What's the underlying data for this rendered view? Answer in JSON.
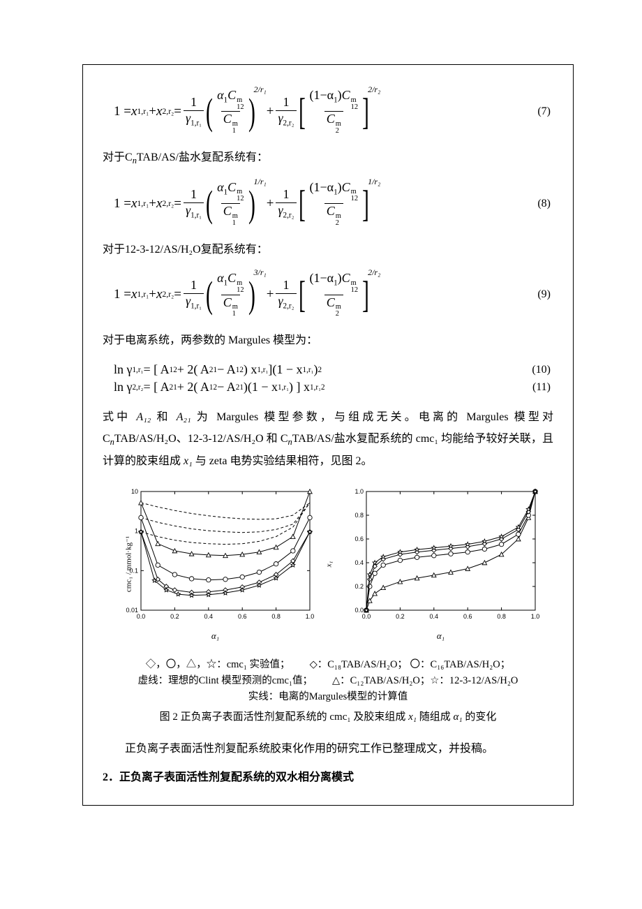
{
  "eq7": {
    "lhs_1": "1 = ",
    "x1": "x",
    "x1_sub": "1,r₁",
    "plus": " + ",
    "x2": "x",
    "x2_sub": "2,r₂",
    "eq": " = ",
    "f1_num": "1",
    "f1_den_base": "γ",
    "f1_den_sub": "1,r₁",
    "p1_num_a": "α",
    "p1_num_a_sub": "1",
    "p1_num_b": "C",
    "p1_num_b_ss_top": "m",
    "p1_num_b_ss_bot": "12",
    "p1_den_b": "C",
    "p1_den_ss_top": "m",
    "p1_den_ss_bot": "1",
    "exp1": "2/r₁",
    "f2_num": "1",
    "f2_den_base": "γ",
    "f2_den_sub": "2,r₂",
    "p2_num_a": "(1−α",
    "p2_num_a_sub": "1",
    "p2_num_a2": ")",
    "p2_num_b": "C",
    "p2_num_b_ss_top": "m",
    "p2_num_b_ss_bot": "12",
    "p2_den_b": "C",
    "p2_den_ss_top": "m",
    "p2_den_ss_bot": "2",
    "exp2": "2/r₂",
    "num": "(7)"
  },
  "para1_a": "对于C",
  "para1_b": "TAB/AS/盐水复配系统有：",
  "n_italic": "n",
  "eq8": {
    "exp1": "1/r₁",
    "exp2": "1/r₂",
    "num": "(8)"
  },
  "para2": "对于12-3-12/AS/H₂O复配系统有：",
  "eq9": {
    "exp1": "3/r₁",
    "exp2": "2/r₂",
    "num": "(9)"
  },
  "para3": "对于电离系统，两参数的 Margules 模型为：",
  "eq10": {
    "lhs": "ln γ",
    "lhs_sub": "1,r₁",
    "body_a": " = [ A",
    "a12": "12",
    "body_b": " + 2( A",
    "a21": "21",
    "body_c": " − A",
    "body_d": " ) x",
    "x_sub": "1,r₁",
    "body_e": " ](1 − x",
    "body_f": ")",
    "sq": "2",
    "num": "(10)"
  },
  "eq11": {
    "lhs": "ln γ",
    "lhs_sub": "2,r₂",
    "body_a": " = [ A",
    "a21": "21",
    "body_b": " + 2( A",
    "a12": "12",
    "body_c": " − A",
    "body_d": " )(1 − x",
    "x_sub": "1,r₁",
    "body_e": ") ] x",
    "body_f": "",
    "sq": "2",
    "num": "(11)"
  },
  "para4_a": "式中 ",
  "para4_b": " 和 ",
  "para4_c": " 为 Margules 模型参数，与组成无关。电离的 Margules 模型对 C",
  "para4_d": "TAB/AS/H₂O、12-3-12/AS/H₂O 和 C",
  "para4_e": "TAB/AS/盐水复配系统的 cmc₁ 均能给予较好关联，且计算的胶束组成 ",
  "para4_f": " 与 zeta 电势实验结果相符，见图 2。",
  "A12": "A₁₂",
  "A21": "A₂₁",
  "x1_text": "x₁",
  "chart_left": {
    "ylabel": "cmc₁ / mmol·kg⁻¹",
    "xlabel": "α₁",
    "xticks": [
      "0.0",
      "0.2",
      "0.4",
      "0.6",
      "0.8",
      "1.0"
    ],
    "yticks": [
      "0.01",
      "0.1",
      "1",
      "10"
    ],
    "colors": {
      "axis": "#000000",
      "bg": "#ffffff"
    },
    "series": {
      "dash1": [
        [
          0,
          0.905
        ],
        [
          0.1,
          0.87
        ],
        [
          0.2,
          0.84
        ],
        [
          0.3,
          0.815
        ],
        [
          0.4,
          0.795
        ],
        [
          0.5,
          0.78
        ],
        [
          0.6,
          0.77
        ],
        [
          0.7,
          0.765
        ],
        [
          0.8,
          0.77
        ],
        [
          0.9,
          0.8
        ],
        [
          1.0,
          0.905
        ]
      ],
      "dash2": [
        [
          0,
          0.78
        ],
        [
          0.1,
          0.74
        ],
        [
          0.2,
          0.71
        ],
        [
          0.3,
          0.685
        ],
        [
          0.4,
          0.67
        ],
        [
          0.5,
          0.66
        ],
        [
          0.6,
          0.655
        ],
        [
          0.7,
          0.66
        ],
        [
          0.8,
          0.68
        ],
        [
          0.9,
          0.725
        ],
        [
          1.0,
          0.905
        ]
      ],
      "dash3": [
        [
          0,
          0.66
        ],
        [
          0.1,
          0.62
        ],
        [
          0.2,
          0.59
        ],
        [
          0.3,
          0.57
        ],
        [
          0.4,
          0.56
        ],
        [
          0.5,
          0.555
        ],
        [
          0.6,
          0.56
        ],
        [
          0.7,
          0.58
        ],
        [
          0.8,
          0.62
        ],
        [
          0.9,
          0.7
        ],
        [
          1.0,
          0.905
        ]
      ],
      "s_tri": [
        [
          0,
          0.905
        ],
        [
          0.1,
          0.56
        ],
        [
          0.2,
          0.5
        ],
        [
          0.3,
          0.475
        ],
        [
          0.4,
          0.465
        ],
        [
          0.5,
          0.46
        ],
        [
          0.6,
          0.47
        ],
        [
          0.7,
          0.49
        ],
        [
          0.8,
          0.53
        ],
        [
          0.9,
          0.62
        ],
        [
          1.0,
          1.0
        ]
      ],
      "s_circ": [
        [
          0,
          0.78
        ],
        [
          0.1,
          0.38
        ],
        [
          0.2,
          0.3
        ],
        [
          0.3,
          0.265
        ],
        [
          0.4,
          0.255
        ],
        [
          0.5,
          0.26
        ],
        [
          0.6,
          0.28
        ],
        [
          0.7,
          0.32
        ],
        [
          0.8,
          0.39
        ],
        [
          0.9,
          0.5
        ],
        [
          1.0,
          0.78
        ]
      ],
      "s_dia": [
        [
          0,
          0.66
        ],
        [
          0.1,
          0.26
        ],
        [
          0.15,
          0.2
        ],
        [
          0.2,
          0.17
        ],
        [
          0.3,
          0.15
        ],
        [
          0.4,
          0.155
        ],
        [
          0.5,
          0.17
        ],
        [
          0.6,
          0.195
        ],
        [
          0.7,
          0.235
        ],
        [
          0.8,
          0.3
        ],
        [
          0.9,
          0.415
        ],
        [
          1.0,
          0.66
        ]
      ],
      "s_star": [
        [
          0,
          0.66
        ],
        [
          0.08,
          0.25
        ],
        [
          0.15,
          0.17
        ],
        [
          0.22,
          0.135
        ],
        [
          0.3,
          0.125
        ],
        [
          0.4,
          0.13
        ],
        [
          0.5,
          0.145
        ],
        [
          0.6,
          0.17
        ],
        [
          0.7,
          0.21
        ],
        [
          0.8,
          0.27
        ],
        [
          0.9,
          0.38
        ],
        [
          1.0,
          0.66
        ]
      ]
    }
  },
  "chart_right": {
    "ylabel": "x₁",
    "xlabel": "α₁",
    "xticks": [
      "0.0",
      "0.2",
      "0.4",
      "0.6",
      "0.8",
      "1.0"
    ],
    "yticks": [
      "0.0",
      "0.2",
      "0.4",
      "0.6",
      "0.8",
      "1.0"
    ],
    "colors": {
      "axis": "#000000",
      "bg": "#ffffff"
    },
    "series": {
      "s_tri": [
        [
          0,
          0
        ],
        [
          0.02,
          0.08
        ],
        [
          0.05,
          0.14
        ],
        [
          0.1,
          0.19
        ],
        [
          0.2,
          0.24
        ],
        [
          0.3,
          0.27
        ],
        [
          0.4,
          0.295
        ],
        [
          0.5,
          0.32
        ],
        [
          0.6,
          0.35
        ],
        [
          0.7,
          0.4
        ],
        [
          0.8,
          0.47
        ],
        [
          0.9,
          0.6
        ],
        [
          0.96,
          0.78
        ],
        [
          1.0,
          1.0
        ]
      ],
      "s_circ": [
        [
          0,
          0
        ],
        [
          0.02,
          0.2
        ],
        [
          0.05,
          0.31
        ],
        [
          0.1,
          0.38
        ],
        [
          0.2,
          0.42
        ],
        [
          0.3,
          0.445
        ],
        [
          0.4,
          0.46
        ],
        [
          0.5,
          0.475
        ],
        [
          0.6,
          0.49
        ],
        [
          0.7,
          0.515
        ],
        [
          0.8,
          0.555
        ],
        [
          0.9,
          0.64
        ],
        [
          0.96,
          0.8
        ],
        [
          1.0,
          1.0
        ]
      ],
      "s_dia": [
        [
          0,
          0
        ],
        [
          0.02,
          0.26
        ],
        [
          0.05,
          0.37
        ],
        [
          0.1,
          0.43
        ],
        [
          0.2,
          0.47
        ],
        [
          0.3,
          0.49
        ],
        [
          0.4,
          0.505
        ],
        [
          0.5,
          0.52
        ],
        [
          0.6,
          0.535
        ],
        [
          0.7,
          0.56
        ],
        [
          0.8,
          0.6
        ],
        [
          0.9,
          0.68
        ],
        [
          0.96,
          0.83
        ],
        [
          1.0,
          1.0
        ]
      ],
      "s_star": [
        [
          0,
          0
        ],
        [
          0.02,
          0.3
        ],
        [
          0.05,
          0.4
        ],
        [
          0.1,
          0.45
        ],
        [
          0.2,
          0.49
        ],
        [
          0.3,
          0.51
        ],
        [
          0.4,
          0.525
        ],
        [
          0.5,
          0.54
        ],
        [
          0.6,
          0.555
        ],
        [
          0.7,
          0.58
        ],
        [
          0.8,
          0.62
        ],
        [
          0.9,
          0.7
        ],
        [
          0.96,
          0.85
        ],
        [
          1.0,
          1.0
        ]
      ]
    }
  },
  "legend": {
    "r1c1": "◇，〇，△，☆：cmc₁ 实验值；",
    "r1c2": "◇：C₁₈TAB/AS/H₂O；  〇：C₁₆TAB/AS/H₂O；",
    "r2c1": "虚线：理想的Clint 模型预测的cmc₁值；",
    "r2c2": "△：C₁₂TAB/AS/H₂O；☆：12-3-12/AS/H₂O",
    "r3": "实线：电离的Margules模型的计算值"
  },
  "caption_a": "图 2 正负离子表面活性剂复配系统的 cmc₁ 及胶束组成 ",
  "caption_b": " 随组成 ",
  "caption_c": " 的变化",
  "alpha1": "α₁",
  "para5": "正负离子表面活性剂复配系统胶束化作用的研究工作已整理成文，并投稿。",
  "section2": "2．正负离子表面活性剂复配系统的双水相分离模式"
}
